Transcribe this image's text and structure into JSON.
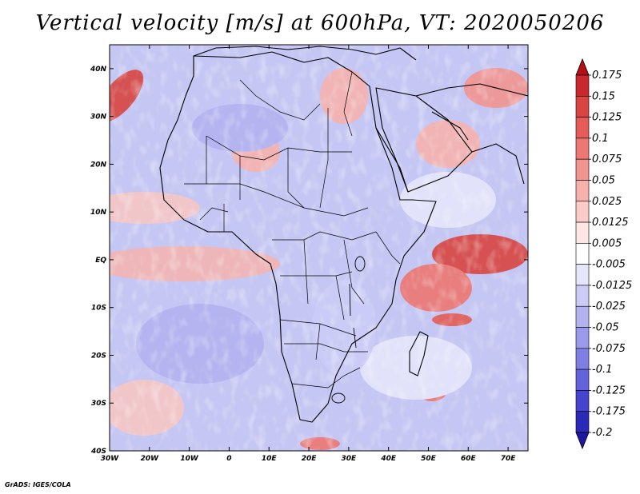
{
  "title": "Vertical velocity [m/s] at 600hPa, VT: 2020050206",
  "credit": "GrADS: IGES/COLA",
  "map": {
    "region": "Africa",
    "lon_range": [
      -30,
      75
    ],
    "lat_range": [
      -40,
      45
    ],
    "lon_ticks": [
      "30W",
      "20W",
      "10W",
      "0",
      "10E",
      "20E",
      "30E",
      "40E",
      "50E",
      "60E",
      "70E"
    ],
    "lat_ticks": [
      "40N",
      "30N",
      "20N",
      "10N",
      "EQ",
      "10S",
      "20S",
      "30S",
      "40S"
    ]
  },
  "colorbar": {
    "labels": [
      "0.175",
      "0.15",
      "0.125",
      "0.1",
      "0.075",
      "0.05",
      "0.025",
      "0.0125",
      "0.005",
      "-0.005",
      "-0.0125",
      "-0.025",
      "-0.05",
      "-0.075",
      "-0.1",
      "-0.125",
      "-0.175",
      "-0.2"
    ],
    "colors": [
      "#b40f16",
      "#c8282d",
      "#d8443f",
      "#e45c55",
      "#ec7670",
      "#f29590",
      "#f6b1ad",
      "#facbc8",
      "#fde6e4",
      "#ffffff",
      "#e6e6fb",
      "#cbccf6",
      "#b3b3f0",
      "#9b9aea",
      "#7f7ee2",
      "#6362da",
      "#4644cf",
      "#2c28b8",
      "#1f16a0"
    ]
  }
}
